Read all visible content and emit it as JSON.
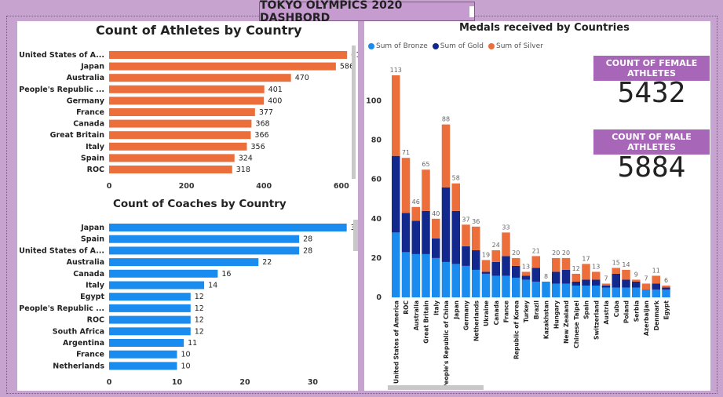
{
  "dashboard": {
    "title": "TOKYO OLYMPICS 2020 DASHBORD"
  },
  "colors": {
    "athletes_bar": "#ec6e3b",
    "coaches_bar": "#1a8cf0",
    "bronze": "#1a8cf0",
    "gold": "#13288c",
    "silver": "#ec6e3b"
  },
  "stats": {
    "female": {
      "label": "COUNT OF FEMALE ATHLETES",
      "value": "5432"
    },
    "male": {
      "label": "COUNT OF MALE ATHLETES",
      "value": "5884"
    }
  },
  "chart_data": [
    {
      "type": "bar",
      "orientation": "horizontal",
      "title": "Count of Athletes by Country",
      "categories": [
        "United States of A...",
        "Japan",
        "Australia",
        "People's Republic ...",
        "Germany",
        "France",
        "Canada",
        "Great Britain",
        "Italy",
        "Spain",
        "ROC"
      ],
      "values": [
        615,
        586,
        470,
        401,
        400,
        377,
        368,
        366,
        356,
        324,
        318
      ],
      "xlim": [
        0,
        710
      ],
      "xticks": [
        0,
        200,
        400,
        600
      ]
    },
    {
      "type": "bar",
      "orientation": "horizontal",
      "title": "Count of Coaches by Country",
      "categories": [
        "Japan",
        "Spain",
        "United States of A...",
        "Australia",
        "Canada",
        "Italy",
        "Egypt",
        "People's Republic ...",
        "ROC",
        "South Africa",
        "Argentina",
        "France",
        "Netherlands"
      ],
      "values": [
        35,
        28,
        28,
        22,
        16,
        14,
        12,
        12,
        12,
        12,
        11,
        10,
        10
      ],
      "xlim": [
        0,
        35.5
      ],
      "xticks": [
        0,
        10,
        20,
        30
      ]
    },
    {
      "type": "bar",
      "stacked": true,
      "title": "Medals received by Countries",
      "legend": [
        "Sum of Bronze",
        "Sum of Gold",
        "Sum of Silver"
      ],
      "legend_position": "top-left",
      "ylim": [
        0,
        115
      ],
      "yticks": [
        0,
        20,
        40,
        60,
        80,
        100
      ],
      "categories": [
        "United States of America",
        "ROC",
        "Australia",
        "Great Britain",
        "Italy",
        "People's Republic of China",
        "Japan",
        "Germany",
        "Netherlands",
        "Ukraine",
        "Canada",
        "France",
        "Republic of Korea",
        "Turkey",
        "Brazil",
        "Kazakhstan",
        "Hungary",
        "New Zealand",
        "Chinese Taipei",
        "Spain",
        "Switzerland",
        "Austria",
        "Cuba",
        "Poland",
        "Serbia",
        "Azerbaijan",
        "Denmark",
        "Egypt"
      ],
      "series": [
        {
          "name": "Sum of Bronze",
          "values": [
            33,
            23,
            22,
            22,
            20,
            18,
            17,
            16,
            14,
            12,
            11,
            11,
            10,
            9,
            8,
            8,
            7,
            7,
            6,
            6,
            6,
            5,
            5,
            5,
            5,
            4,
            4,
            4
          ]
        },
        {
          "name": "Sum of Gold",
          "values": [
            39,
            20,
            17,
            22,
            10,
            38,
            27,
            10,
            10,
            1,
            7,
            10,
            6,
            2,
            7,
            0,
            6,
            7,
            2,
            3,
            3,
            1,
            7,
            4,
            3,
            0,
            3,
            1
          ]
        },
        {
          "name": "Sum of Silver",
          "values": [
            41,
            28,
            7,
            21,
            10,
            32,
            14,
            11,
            12,
            6,
            6,
            12,
            4,
            2,
            6,
            0,
            7,
            6,
            4,
            8,
            4,
            1,
            3,
            5,
            1,
            3,
            4,
            1
          ]
        }
      ],
      "totals": [
        113,
        71,
        46,
        65,
        40,
        88,
        58,
        37,
        36,
        19,
        24,
        33,
        20,
        13,
        21,
        8,
        20,
        20,
        12,
        17,
        13,
        7,
        15,
        14,
        9,
        7,
        11,
        6
      ]
    }
  ]
}
